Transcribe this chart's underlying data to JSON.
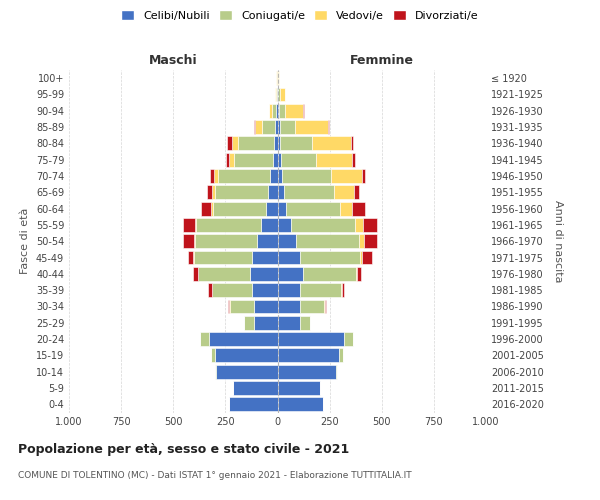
{
  "age_groups": [
    "0-4",
    "5-9",
    "10-14",
    "15-19",
    "20-24",
    "25-29",
    "30-34",
    "35-39",
    "40-44",
    "45-49",
    "50-54",
    "55-59",
    "60-64",
    "65-69",
    "70-74",
    "75-79",
    "80-84",
    "85-89",
    "90-94",
    "95-99",
    "100+"
  ],
  "birth_years": [
    "2016-2020",
    "2011-2015",
    "2006-2010",
    "2001-2005",
    "1996-2000",
    "1991-1995",
    "1986-1990",
    "1981-1985",
    "1976-1980",
    "1971-1975",
    "1966-1970",
    "1961-1965",
    "1956-1960",
    "1951-1955",
    "1946-1950",
    "1941-1945",
    "1936-1940",
    "1931-1935",
    "1926-1930",
    "1921-1925",
    "≤ 1920"
  ],
  "male": {
    "celibi": [
      235,
      215,
      295,
      300,
      330,
      115,
      115,
      120,
      130,
      120,
      100,
      80,
      55,
      45,
      35,
      20,
      15,
      10,
      5,
      2,
      2
    ],
    "coniugati": [
      0,
      0,
      5,
      20,
      40,
      45,
      115,
      195,
      250,
      280,
      295,
      310,
      255,
      255,
      250,
      190,
      175,
      65,
      20,
      5,
      2
    ],
    "vedovi": [
      0,
      0,
      0,
      0,
      0,
      1,
      1,
      1,
      2,
      3,
      5,
      8,
      10,
      15,
      20,
      25,
      30,
      35,
      15,
      5,
      1
    ],
    "divorziati": [
      0,
      0,
      0,
      0,
      0,
      2,
      5,
      15,
      22,
      25,
      55,
      55,
      45,
      22,
      18,
      12,
      20,
      5,
      2,
      0,
      0
    ]
  },
  "female": {
    "nubili": [
      220,
      205,
      280,
      295,
      320,
      110,
      110,
      110,
      120,
      110,
      90,
      65,
      40,
      30,
      20,
      15,
      12,
      10,
      5,
      3,
      2
    ],
    "coniugate": [
      0,
      0,
      5,
      20,
      40,
      45,
      115,
      195,
      255,
      285,
      300,
      305,
      260,
      240,
      235,
      170,
      155,
      75,
      30,
      8,
      2
    ],
    "vedove": [
      0,
      0,
      0,
      0,
      0,
      1,
      2,
      3,
      5,
      10,
      25,
      40,
      55,
      95,
      150,
      170,
      185,
      155,
      85,
      25,
      5
    ],
    "divorziate": [
      0,
      0,
      0,
      0,
      0,
      2,
      5,
      12,
      20,
      50,
      60,
      65,
      65,
      25,
      15,
      18,
      12,
      8,
      5,
      2,
      0
    ]
  },
  "colors": {
    "celibi_nubili": "#4472c4",
    "coniugati": "#b8cc8a",
    "vedovi": "#ffd966",
    "divorziati": "#c0141c"
  },
  "xlim": 1000,
  "title": "Popolazione per età, sesso e stato civile - 2021",
  "subtitle": "COMUNE DI TOLENTINO (MC) - Dati ISTAT 1° gennaio 2021 - Elaborazione TUTTITALIA.IT",
  "ylabel_left": "Fasce di età",
  "ylabel_right": "Anni di nascita",
  "xlabel_left": "Maschi",
  "xlabel_right": "Femmine",
  "background_color": "#ffffff",
  "grid_color": "#cccccc"
}
